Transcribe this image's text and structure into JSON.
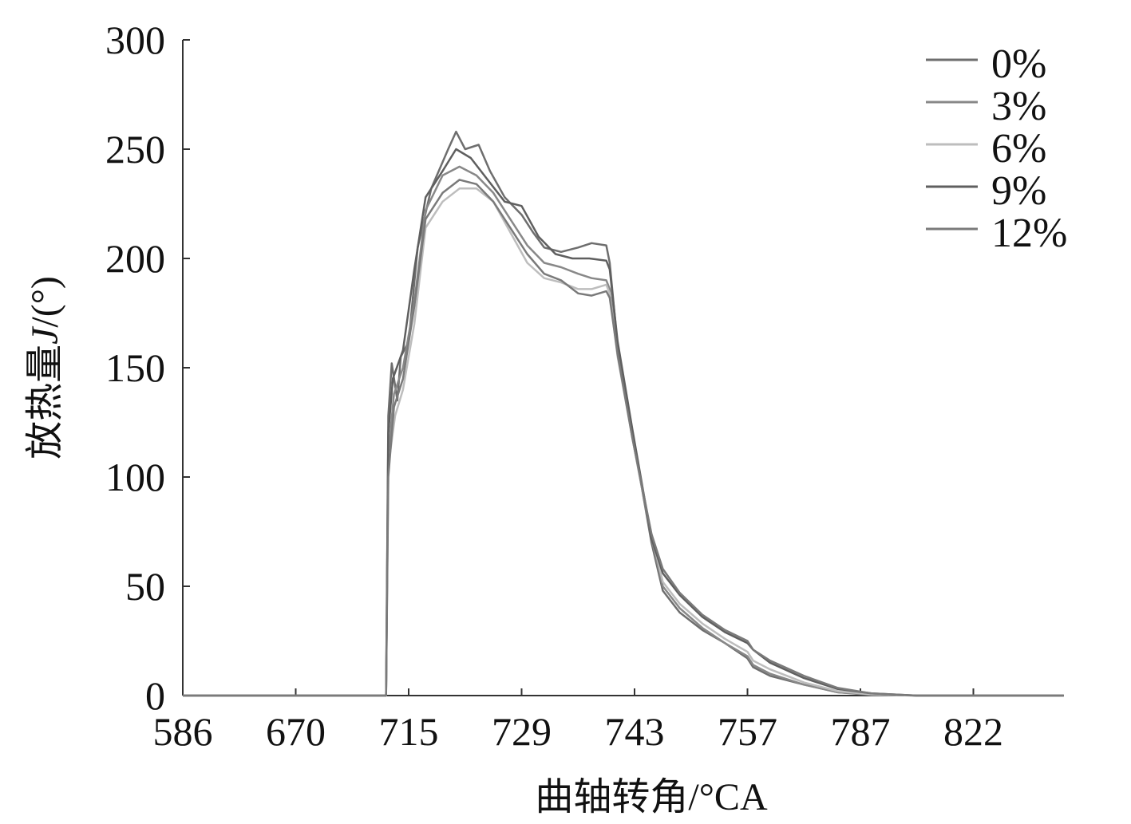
{
  "chart_data": {
    "type": "line",
    "xlabel": "曲轴转角/°CA",
    "ylabel_prefix": "放热量",
    "ylabel_var": "J",
    "ylabel_suffix": "/(°)",
    "x_tick_labels": [
      "586",
      "670",
      "715",
      "729",
      "743",
      "757",
      "787",
      "822"
    ],
    "x_tick_index": [
      0,
      1,
      2,
      3,
      4,
      5,
      6,
      7
    ],
    "x_axis_end_index": 7.8,
    "ylim": [
      0,
      300
    ],
    "y_ticks": [
      0,
      50,
      100,
      150,
      200,
      250,
      300
    ],
    "grid": false,
    "legend_position": "top-right",
    "series": [
      {
        "name": "0%",
        "color": "#6e6e6e",
        "points": [
          [
            0,
            0
          ],
          [
            1,
            0
          ],
          [
            1.8,
            0
          ],
          [
            1.82,
            128
          ],
          [
            1.85,
            152
          ],
          [
            1.9,
            135
          ],
          [
            1.93,
            155
          ],
          [
            2.0,
            162
          ],
          [
            2.08,
            205
          ],
          [
            2.2,
            232
          ],
          [
            2.35,
            250
          ],
          [
            2.42,
            258
          ],
          [
            2.5,
            250
          ],
          [
            2.62,
            252
          ],
          [
            2.72,
            240
          ],
          [
            2.85,
            228
          ],
          [
            3.0,
            220
          ],
          [
            3.1,
            212
          ],
          [
            3.2,
            205
          ],
          [
            3.35,
            203
          ],
          [
            3.5,
            205
          ],
          [
            3.62,
            207
          ],
          [
            3.75,
            206
          ],
          [
            3.78,
            198
          ],
          [
            3.85,
            160
          ],
          [
            3.98,
            120
          ],
          [
            4.15,
            70
          ],
          [
            4.25,
            48
          ],
          [
            4.4,
            38
          ],
          [
            4.6,
            30
          ],
          [
            4.8,
            24
          ],
          [
            5.0,
            17
          ],
          [
            5.05,
            13
          ],
          [
            5.2,
            9
          ],
          [
            5.5,
            5
          ],
          [
            5.8,
            1.5
          ],
          [
            6.1,
            0.5
          ],
          [
            6.5,
            0
          ],
          [
            7.8,
            0
          ]
        ]
      },
      {
        "name": "3%",
        "color": "#888888",
        "points": [
          [
            0,
            0
          ],
          [
            1,
            0
          ],
          [
            1.8,
            0
          ],
          [
            1.82,
            110
          ],
          [
            1.87,
            138
          ],
          [
            1.95,
            150
          ],
          [
            2.05,
            180
          ],
          [
            2.15,
            222
          ],
          [
            2.3,
            238
          ],
          [
            2.45,
            242
          ],
          [
            2.6,
            238
          ],
          [
            2.75,
            230
          ],
          [
            2.9,
            218
          ],
          [
            3.05,
            206
          ],
          [
            3.2,
            198
          ],
          [
            3.35,
            196
          ],
          [
            3.5,
            193
          ],
          [
            3.62,
            191
          ],
          [
            3.75,
            190
          ],
          [
            3.78,
            186
          ],
          [
            3.85,
            158
          ],
          [
            3.98,
            118
          ],
          [
            4.15,
            72
          ],
          [
            4.25,
            50
          ],
          [
            4.4,
            40
          ],
          [
            4.6,
            31
          ],
          [
            4.8,
            24
          ],
          [
            5.0,
            18
          ],
          [
            5.05,
            14
          ],
          [
            5.2,
            10
          ],
          [
            5.5,
            5
          ],
          [
            5.8,
            1.5
          ],
          [
            6.1,
            0.3
          ],
          [
            6.5,
            0
          ],
          [
            7.8,
            0
          ]
        ]
      },
      {
        "name": "6%",
        "color": "#bdbdbd",
        "points": [
          [
            0,
            0
          ],
          [
            1,
            0
          ],
          [
            1.8,
            0
          ],
          [
            1.82,
            105
          ],
          [
            1.88,
            128
          ],
          [
            1.95,
            140
          ],
          [
            2.05,
            170
          ],
          [
            2.15,
            214
          ],
          [
            2.3,
            226
          ],
          [
            2.45,
            232
          ],
          [
            2.6,
            232
          ],
          [
            2.75,
            226
          ],
          [
            2.9,
            212
          ],
          [
            3.05,
            198
          ],
          [
            3.2,
            191
          ],
          [
            3.35,
            189
          ],
          [
            3.5,
            186
          ],
          [
            3.62,
            186
          ],
          [
            3.75,
            188
          ],
          [
            3.78,
            184
          ],
          [
            3.85,
            155
          ],
          [
            3.98,
            118
          ],
          [
            4.15,
            74
          ],
          [
            4.25,
            52
          ],
          [
            4.4,
            42
          ],
          [
            4.6,
            33
          ],
          [
            4.8,
            26
          ],
          [
            5.0,
            20
          ],
          [
            5.05,
            16
          ],
          [
            5.2,
            12
          ],
          [
            5.5,
            6
          ],
          [
            5.8,
            2
          ],
          [
            6.1,
            0.5
          ],
          [
            6.5,
            0
          ],
          [
            7.8,
            0
          ]
        ]
      },
      {
        "name": "9%",
        "color": "#5f5f5f",
        "points": [
          [
            0,
            0
          ],
          [
            1,
            0
          ],
          [
            1.8,
            0
          ],
          [
            1.82,
            120
          ],
          [
            1.86,
            145
          ],
          [
            1.95,
            158
          ],
          [
            2.05,
            195
          ],
          [
            2.15,
            228
          ],
          [
            2.3,
            240
          ],
          [
            2.42,
            250
          ],
          [
            2.55,
            246
          ],
          [
            2.7,
            236
          ],
          [
            2.85,
            226
          ],
          [
            3.0,
            224
          ],
          [
            3.15,
            210
          ],
          [
            3.3,
            202
          ],
          [
            3.45,
            200
          ],
          [
            3.6,
            200
          ],
          [
            3.75,
            199
          ],
          [
            3.78,
            195
          ],
          [
            3.85,
            162
          ],
          [
            3.98,
            122
          ],
          [
            4.15,
            72
          ],
          [
            4.25,
            56
          ],
          [
            4.4,
            46
          ],
          [
            4.6,
            36
          ],
          [
            4.8,
            29
          ],
          [
            5.0,
            24
          ],
          [
            5.05,
            21
          ],
          [
            5.2,
            15
          ],
          [
            5.5,
            8
          ],
          [
            5.8,
            3
          ],
          [
            6.1,
            1
          ],
          [
            6.5,
            0
          ],
          [
            7.8,
            0
          ]
        ]
      },
      {
        "name": "12%",
        "color": "#7a7a7a",
        "points": [
          [
            0,
            0
          ],
          [
            1,
            0
          ],
          [
            1.8,
            0
          ],
          [
            1.82,
            100
          ],
          [
            1.87,
            132
          ],
          [
            1.95,
            145
          ],
          [
            2.05,
            178
          ],
          [
            2.15,
            218
          ],
          [
            2.3,
            230
          ],
          [
            2.45,
            236
          ],
          [
            2.6,
            234
          ],
          [
            2.75,
            226
          ],
          [
            2.9,
            214
          ],
          [
            3.05,
            202
          ],
          [
            3.2,
            193
          ],
          [
            3.35,
            190
          ],
          [
            3.5,
            184
          ],
          [
            3.62,
            183
          ],
          [
            3.75,
            185
          ],
          [
            3.78,
            182
          ],
          [
            3.85,
            156
          ],
          [
            3.98,
            118
          ],
          [
            4.15,
            74
          ],
          [
            4.25,
            58
          ],
          [
            4.4,
            47
          ],
          [
            4.6,
            37
          ],
          [
            4.8,
            30
          ],
          [
            5.0,
            25
          ],
          [
            5.05,
            21
          ],
          [
            5.2,
            16
          ],
          [
            5.5,
            9
          ],
          [
            5.8,
            3.5
          ],
          [
            6.1,
            1
          ],
          [
            6.5,
            0
          ],
          [
            7.8,
            0
          ]
        ]
      }
    ]
  }
}
